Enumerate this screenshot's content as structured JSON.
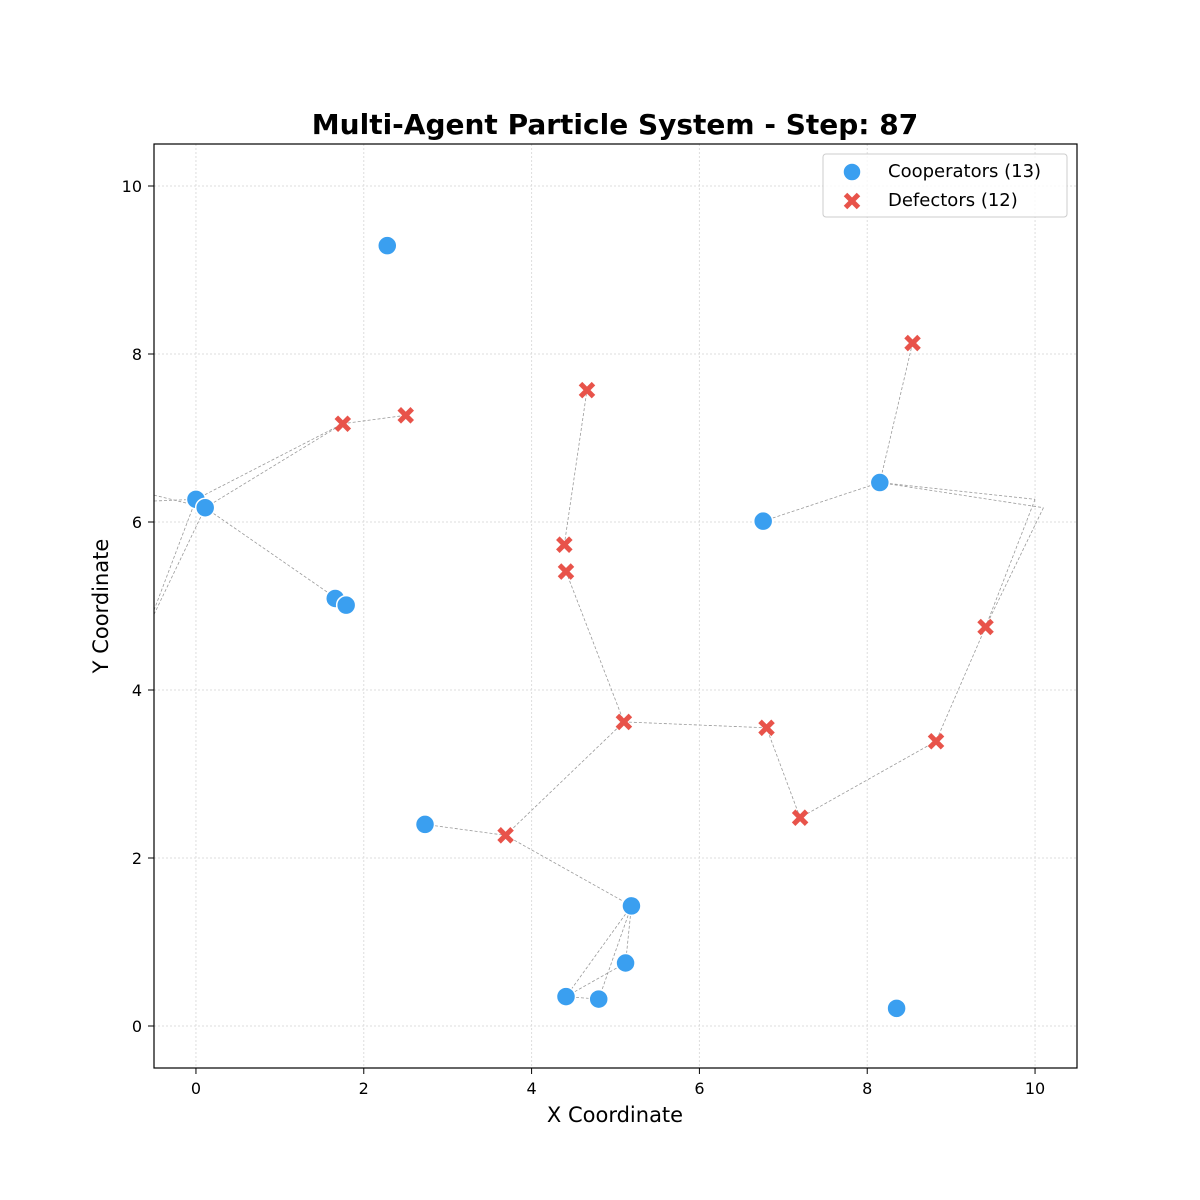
{
  "chart_data": {
    "type": "scatter",
    "title": "Multi-Agent Particle System - Step: 87",
    "xlabel": "X Coordinate",
    "ylabel": "Y Coordinate",
    "xlim": [
      -0.5,
      10.5
    ],
    "ylim": [
      -0.5,
      10.5
    ],
    "xticks": [
      0,
      2,
      4,
      6,
      8,
      10
    ],
    "yticks": [
      0,
      2,
      4,
      6,
      8,
      10
    ],
    "grid": true,
    "legend_position": "top-right",
    "series": [
      {
        "name": "Cooperators (13)",
        "marker": "circle",
        "color": "#3a9ff0",
        "points": [
          [
            2.28,
            9.29
          ],
          [
            0.0,
            6.27
          ],
          [
            0.11,
            6.17
          ],
          [
            1.66,
            5.09
          ],
          [
            1.79,
            5.01
          ],
          [
            8.15,
            6.47
          ],
          [
            6.76,
            6.01
          ],
          [
            2.73,
            2.4
          ],
          [
            5.19,
            1.43
          ],
          [
            5.12,
            0.75
          ],
          [
            4.41,
            0.35
          ],
          [
            4.8,
            0.32
          ],
          [
            8.35,
            0.21
          ]
        ]
      },
      {
        "name": "Defectors (12)",
        "marker": "x",
        "color": "#e8534a",
        "points": [
          [
            8.54,
            8.13
          ],
          [
            4.66,
            7.57
          ],
          [
            1.75,
            7.17
          ],
          [
            2.5,
            7.27
          ],
          [
            4.39,
            5.73
          ],
          [
            4.41,
            5.41
          ],
          [
            9.41,
            4.75
          ],
          [
            5.1,
            3.62
          ],
          [
            6.8,
            3.55
          ],
          [
            8.82,
            3.39
          ],
          [
            7.2,
            2.48
          ],
          [
            3.69,
            2.27
          ]
        ]
      }
    ],
    "connections": [
      [
        [
          -0.5,
          6.32
        ],
        [
          0.11,
          6.17
        ]
      ],
      [
        [
          -0.5,
          6.25
        ],
        [
          0.0,
          6.27
        ]
      ],
      [
        [
          -0.5,
          4.95
        ],
        [
          0.0,
          6.27
        ]
      ],
      [
        [
          -0.5,
          4.9
        ],
        [
          0.11,
          6.17
        ]
      ],
      [
        [
          0.0,
          6.27
        ],
        [
          1.75,
          7.17
        ]
      ],
      [
        [
          0.11,
          6.17
        ],
        [
          1.75,
          7.17
        ]
      ],
      [
        [
          1.75,
          7.17
        ],
        [
          2.5,
          7.27
        ]
      ],
      [
        [
          0.11,
          6.17
        ],
        [
          1.79,
          5.01
        ]
      ],
      [
        [
          4.39,
          5.73
        ],
        [
          4.66,
          7.57
        ]
      ],
      [
        [
          4.41,
          5.41
        ],
        [
          5.1,
          3.62
        ]
      ],
      [
        [
          5.1,
          3.62
        ],
        [
          6.8,
          3.55
        ]
      ],
      [
        [
          5.1,
          3.62
        ],
        [
          3.69,
          2.27
        ]
      ],
      [
        [
          2.73,
          2.4
        ],
        [
          3.69,
          2.27
        ]
      ],
      [
        [
          3.69,
          2.27
        ],
        [
          5.19,
          1.43
        ]
      ],
      [
        [
          5.19,
          1.43
        ],
        [
          4.41,
          0.35
        ]
      ],
      [
        [
          5.19,
          1.43
        ],
        [
          4.8,
          0.32
        ]
      ],
      [
        [
          5.19,
          1.43
        ],
        [
          5.12,
          0.75
        ]
      ],
      [
        [
          4.41,
          0.35
        ],
        [
          5.12,
          0.75
        ]
      ],
      [
        [
          4.41,
          0.35
        ],
        [
          4.8,
          0.32
        ]
      ],
      [
        [
          6.76,
          6.01
        ],
        [
          8.15,
          6.47
        ]
      ],
      [
        [
          8.15,
          6.47
        ],
        [
          8.54,
          8.13
        ]
      ],
      [
        [
          8.15,
          6.47
        ],
        [
          10.0,
          6.27
        ]
      ],
      [
        [
          8.15,
          6.47
        ],
        [
          10.1,
          6.17
        ]
      ],
      [
        [
          10.0,
          6.27
        ],
        [
          9.41,
          4.75
        ]
      ],
      [
        [
          10.1,
          6.17
        ],
        [
          9.41,
          4.75
        ]
      ],
      [
        [
          9.41,
          4.75
        ],
        [
          8.82,
          3.39
        ]
      ],
      [
        [
          8.82,
          3.39
        ],
        [
          7.2,
          2.48
        ]
      ],
      [
        [
          7.2,
          2.48
        ],
        [
          6.8,
          3.55
        ]
      ]
    ]
  }
}
